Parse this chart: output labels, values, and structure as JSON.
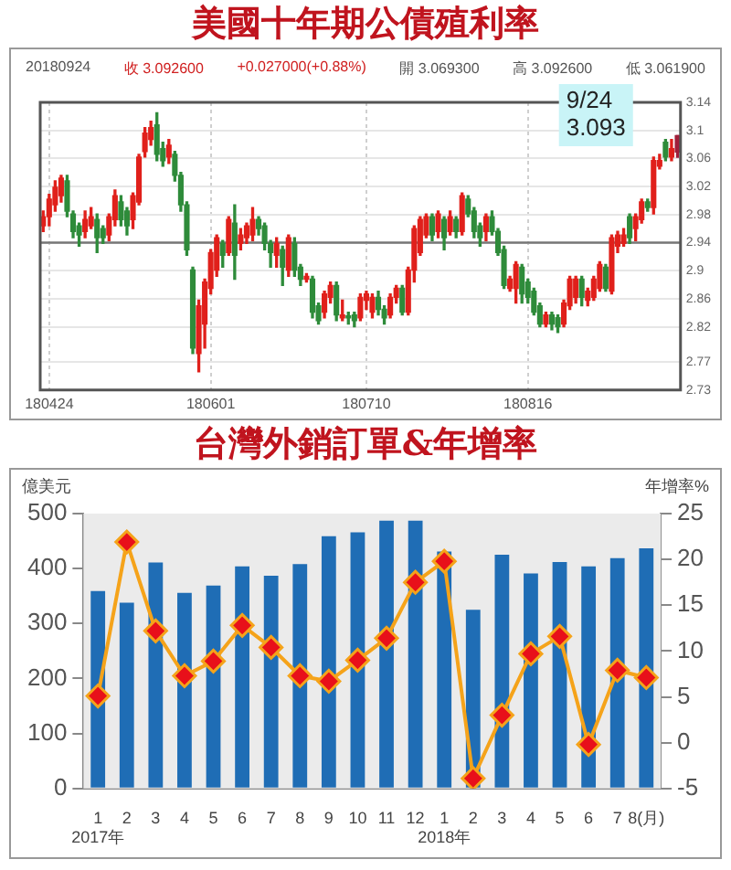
{
  "chart_data": [
    {
      "type": "candlestick",
      "title": "美國十年期公債殖利率",
      "annotations": [
        "20180924",
        "收 3.092600",
        "+0.027000(+0.88%)",
        "開 3.069300",
        "高 3.092600",
        "低 3.061900",
        "9/24\n3.093"
      ],
      "categories": [
        null,
        "180424",
        null,
        null,
        null,
        null,
        null,
        null,
        null,
        null,
        null,
        null,
        null,
        null,
        null,
        null,
        null,
        null,
        null,
        null,
        null,
        null,
        null,
        null,
        null,
        null,
        null,
        null,
        "180601",
        null,
        null,
        null,
        null,
        null,
        null,
        null,
        null,
        null,
        null,
        null,
        null,
        null,
        null,
        null,
        null,
        null,
        null,
        null,
        null,
        null,
        null,
        null,
        null,
        null,
        "180710",
        null,
        null,
        null,
        null,
        null,
        null,
        null,
        null,
        null,
        null,
        null,
        null,
        null,
        null,
        null,
        null,
        null,
        null,
        null,
        null,
        null,
        null,
        null,
        null,
        null,
        null,
        "180816",
        null,
        null,
        null,
        null,
        null,
        null,
        null,
        null,
        null,
        null,
        null,
        null,
        null,
        null,
        null,
        null,
        null,
        null,
        null,
        null,
        null,
        null,
        null,
        null,
        null
      ],
      "ohlc": [
        [
          2.964,
          2.985,
          2.956,
          2.977
        ],
        [
          2.977,
          3.009,
          2.964,
          3.002
        ],
        [
          2.994,
          3.028,
          2.985,
          3.019
        ],
        [
          3.007,
          3.036,
          2.998,
          3.032
        ],
        [
          3.028,
          3.036,
          2.977,
          2.985
        ],
        [
          2.981,
          2.985,
          2.947,
          2.956
        ],
        [
          2.964,
          2.968,
          2.935,
          2.951
        ],
        [
          2.956,
          2.985,
          2.947,
          2.973
        ],
        [
          2.964,
          2.99,
          2.96,
          2.977
        ],
        [
          2.973,
          2.981,
          2.926,
          2.947
        ],
        [
          2.96,
          2.964,
          2.939,
          2.947
        ],
        [
          2.951,
          2.981,
          2.943,
          2.977
        ],
        [
          2.973,
          3.015,
          2.964,
          3.007
        ],
        [
          2.998,
          3.007,
          2.964,
          2.973
        ],
        [
          2.985,
          2.99,
          2.951,
          2.964
        ],
        [
          2.973,
          3.011,
          2.96,
          3.007
        ],
        [
          2.998,
          3.066,
          2.994,
          3.062
        ],
        [
          3.07,
          3.104,
          3.062,
          3.096
        ],
        [
          3.087,
          3.113,
          3.079,
          3.104
        ],
        [
          3.108,
          3.125,
          3.057,
          3.066
        ],
        [
          3.074,
          3.083,
          3.049,
          3.057
        ],
        [
          3.062,
          3.087,
          3.053,
          3.079
        ],
        [
          3.066,
          3.07,
          3.028,
          3.036
        ],
        [
          3.036,
          3.04,
          2.985,
          2.994
        ],
        [
          2.994,
          2.998,
          2.922,
          2.93
        ],
        [
          2.901,
          2.905,
          2.782,
          2.79
        ],
        [
          2.782,
          2.858,
          2.756,
          2.85
        ],
        [
          2.824,
          2.888,
          2.79,
          2.884
        ],
        [
          2.875,
          2.93,
          2.867,
          2.926
        ],
        [
          2.901,
          2.951,
          2.892,
          2.947
        ],
        [
          2.939,
          2.943,
          2.905,
          2.922
        ],
        [
          2.926,
          2.977,
          2.922,
          2.973
        ],
        [
          2.968,
          2.994,
          2.888,
          2.922
        ],
        [
          2.939,
          2.96,
          2.93,
          2.951
        ],
        [
          2.947,
          2.968,
          2.939,
          2.964
        ],
        [
          2.951,
          2.99,
          2.943,
          2.973
        ],
        [
          2.973,
          2.977,
          2.951,
          2.96
        ],
        [
          2.964,
          2.968,
          2.93,
          2.939
        ],
        [
          2.939,
          2.943,
          2.905,
          2.926
        ],
        [
          2.922,
          2.947,
          2.905,
          2.939
        ],
        [
          2.93,
          2.935,
          2.879,
          2.905
        ],
        [
          2.901,
          2.951,
          2.892,
          2.947
        ],
        [
          2.939,
          2.947,
          2.892,
          2.901
        ],
        [
          2.905,
          2.909,
          2.879,
          2.888
        ],
        [
          2.888,
          2.896,
          2.884,
          2.892
        ],
        [
          2.888,
          2.892,
          2.833,
          2.841
        ],
        [
          2.85,
          2.854,
          2.824,
          2.829
        ],
        [
          2.841,
          2.871,
          2.833,
          2.867
        ],
        [
          2.862,
          2.884,
          2.854,
          2.879
        ],
        [
          2.879,
          2.884,
          2.829,
          2.837
        ],
        [
          2.833,
          2.858,
          2.829,
          2.837
        ],
        [
          2.834,
          2.841,
          2.824,
          2.833
        ],
        [
          2.837,
          2.841,
          2.82,
          2.829
        ],
        [
          2.833,
          2.867,
          2.829,
          2.862
        ],
        [
          2.858,
          2.871,
          2.845,
          2.867
        ],
        [
          2.841,
          2.867,
          2.833,
          2.862
        ],
        [
          2.862,
          2.871,
          2.837,
          2.845
        ],
        [
          2.845,
          2.85,
          2.824,
          2.833
        ],
        [
          2.837,
          2.867,
          2.833,
          2.862
        ],
        [
          2.862,
          2.879,
          2.854,
          2.875
        ],
        [
          2.875,
          2.879,
          2.837,
          2.841
        ],
        [
          2.841,
          2.905,
          2.837,
          2.901
        ],
        [
          2.901,
          2.964,
          2.884,
          2.96
        ],
        [
          2.926,
          2.977,
          2.922,
          2.973
        ],
        [
          2.951,
          2.981,
          2.947,
          2.977
        ],
        [
          2.977,
          2.981,
          2.943,
          2.951
        ],
        [
          2.956,
          2.985,
          2.947,
          2.981
        ],
        [
          2.973,
          2.977,
          2.93,
          2.947
        ],
        [
          2.956,
          2.985,
          2.951,
          2.977
        ],
        [
          2.973,
          2.977,
          2.947,
          2.956
        ],
        [
          2.956,
          3.011,
          2.951,
          3.007
        ],
        [
          3.002,
          3.007,
          2.977,
          2.981
        ],
        [
          2.985,
          2.99,
          2.947,
          2.956
        ],
        [
          2.964,
          2.968,
          2.935,
          2.947
        ],
        [
          2.956,
          2.981,
          2.943,
          2.977
        ],
        [
          2.977,
          2.985,
          2.951,
          2.956
        ],
        [
          2.956,
          2.96,
          2.922,
          2.926
        ],
        [
          2.93,
          2.935,
          2.875,
          2.879
        ],
        [
          2.875,
          2.892,
          2.871,
          2.888
        ],
        [
          2.875,
          2.913,
          2.854,
          2.909
        ],
        [
          2.905,
          2.909,
          2.854,
          2.867
        ],
        [
          2.884,
          2.888,
          2.854,
          2.862
        ],
        [
          2.871,
          2.875,
          2.837,
          2.841
        ],
        [
          2.85,
          2.854,
          2.82,
          2.824
        ],
        [
          2.824,
          2.841,
          2.82,
          2.837
        ],
        [
          2.837,
          2.841,
          2.816,
          2.824
        ],
        [
          2.833,
          2.837,
          2.812,
          2.82
        ],
        [
          2.824,
          2.858,
          2.82,
          2.854
        ],
        [
          2.85,
          2.892,
          2.845,
          2.888
        ],
        [
          2.862,
          2.892,
          2.854,
          2.888
        ],
        [
          2.888,
          2.892,
          2.85,
          2.862
        ],
        [
          2.858,
          2.875,
          2.85,
          2.871
        ],
        [
          2.862,
          2.892,
          2.858,
          2.888
        ],
        [
          2.875,
          2.913,
          2.871,
          2.909
        ],
        [
          2.905,
          2.909,
          2.871,
          2.875
        ],
        [
          2.871,
          2.951,
          2.867,
          2.947
        ],
        [
          2.935,
          2.956,
          2.926,
          2.951
        ],
        [
          2.939,
          2.96,
          2.935,
          2.951
        ],
        [
          2.977,
          2.981,
          2.939,
          2.947
        ],
        [
          2.96,
          2.981,
          2.943,
          2.977
        ],
        [
          2.973,
          3.002,
          2.968,
          2.998
        ],
        [
          2.998,
          3.002,
          2.985,
          2.99
        ],
        [
          2.99,
          3.062,
          2.981,
          3.057
        ],
        [
          3.049,
          3.066,
          3.045,
          3.057
        ],
        [
          3.083,
          3.087,
          3.057,
          3.062
        ],
        [
          3.062,
          3.087,
          3.057,
          3.074
        ],
        [
          3.0693,
          3.0926,
          3.0619,
          3.0926
        ]
      ],
      "colors": [
        "#e0201b",
        "#e0201b",
        "#e0201b",
        "#e0201b",
        "#2e8b3a",
        "#2e8b3a",
        "#2e8b3a",
        "#e0201b",
        "#e0201b",
        "#2e8b3a",
        "#2e8b3a",
        "#e0201b",
        "#e0201b",
        "#2e8b3a",
        "#2e8b3a",
        "#e0201b",
        "#e0201b",
        "#e0201b",
        "#e0201b",
        "#2e8b3a",
        "#2e8b3a",
        "#e0201b",
        "#2e8b3a",
        "#2e8b3a",
        "#2e8b3a",
        "#2e8b3a",
        "#e0201b",
        "#e0201b",
        "#e0201b",
        "#e0201b",
        "#2e8b3a",
        "#e0201b",
        "#2e8b3a",
        "#e0201b",
        "#e0201b",
        "#e0201b",
        "#2e8b3a",
        "#2e8b3a",
        "#2e8b3a",
        "#e0201b",
        "#2e8b3a",
        "#e0201b",
        "#2e8b3a",
        "#2e8b3a",
        "#e0201b",
        "#2e8b3a",
        "#2e8b3a",
        "#e0201b",
        "#e0201b",
        "#2e8b3a",
        "#e0201b",
        "#2e8b3a",
        "#2e8b3a",
        "#e0201b",
        "#e0201b",
        "#e0201b",
        "#2e8b3a",
        "#2e8b3a",
        "#e0201b",
        "#e0201b",
        "#2e8b3a",
        "#e0201b",
        "#e0201b",
        "#e0201b",
        "#e0201b",
        "#2e8b3a",
        "#e0201b",
        "#2e8b3a",
        "#e0201b",
        "#2e8b3a",
        "#e0201b",
        "#2e8b3a",
        "#2e8b3a",
        "#2e8b3a",
        "#e0201b",
        "#2e8b3a",
        "#2e8b3a",
        "#2e8b3a",
        "#e0201b",
        "#e0201b",
        "#2e8b3a",
        "#2e8b3a",
        "#2e8b3a",
        "#2e8b3a",
        "#e0201b",
        "#2e8b3a",
        "#2e8b3a",
        "#e0201b",
        "#e0201b",
        "#e0201b",
        "#2e8b3a",
        "#e0201b",
        "#e0201b",
        "#e0201b",
        "#2e8b3a",
        "#e0201b",
        "#e0201b",
        "#e0201b",
        "#2e8b3a",
        "#e0201b",
        "#e0201b",
        "#2e8b3a",
        "#e0201b",
        "#e0201b",
        "#2e8b3a",
        "#e0201b",
        "#a01f3a"
      ],
      "ylim": [
        2.73,
        3.14
      ],
      "yticks": [
        3.14,
        3.1,
        3.06,
        3.02,
        2.98,
        2.94,
        2.9,
        2.86,
        2.82,
        2.77,
        2.73
      ],
      "ref_lines": [
        {
          "axis": "y",
          "value": 2.94,
          "color": "#777777"
        }
      ],
      "grid": true
    },
    {
      "type": "bar",
      "title": "台灣外銷訂單&年增率",
      "ylabel": "億美元",
      "y2label": "年增率%",
      "categories": [
        "1\n2017年",
        "2",
        "3",
        "4",
        "5",
        "6",
        "7",
        "8",
        "9",
        "10",
        "11",
        "12",
        "1\n2018年",
        "2",
        "3",
        "4",
        "5",
        "6",
        "7",
        "8(月)"
      ],
      "series": [
        {
          "type": "bar",
          "color": "#1f6db5",
          "values": [
            359,
            338,
            411,
            356,
            369,
            404,
            387,
            408,
            459,
            466,
            487,
            487,
            431,
            325,
            425,
            391,
            412,
            404,
            419,
            437
          ]
        },
        {
          "type": "line",
          "axis": "y2",
          "color": "#f5a31a",
          "values": [
            5.1,
            21.9,
            12.2,
            7.3,
            8.9,
            12.8,
            10.4,
            7.3,
            6.7,
            9.0,
            11.4,
            17.5,
            19.8,
            -3.9,
            3.0,
            9.7,
            11.6,
            -0.2,
            7.9,
            7.1
          ]
        }
      ],
      "ylim": [
        0,
        500
      ],
      "yticks": [
        0,
        100,
        200,
        300,
        400,
        500
      ],
      "y2lim": [
        -5,
        25
      ],
      "y2ticks": [
        -5,
        0,
        5,
        10,
        15,
        20,
        25
      ],
      "marker": "diamond"
    }
  ]
}
